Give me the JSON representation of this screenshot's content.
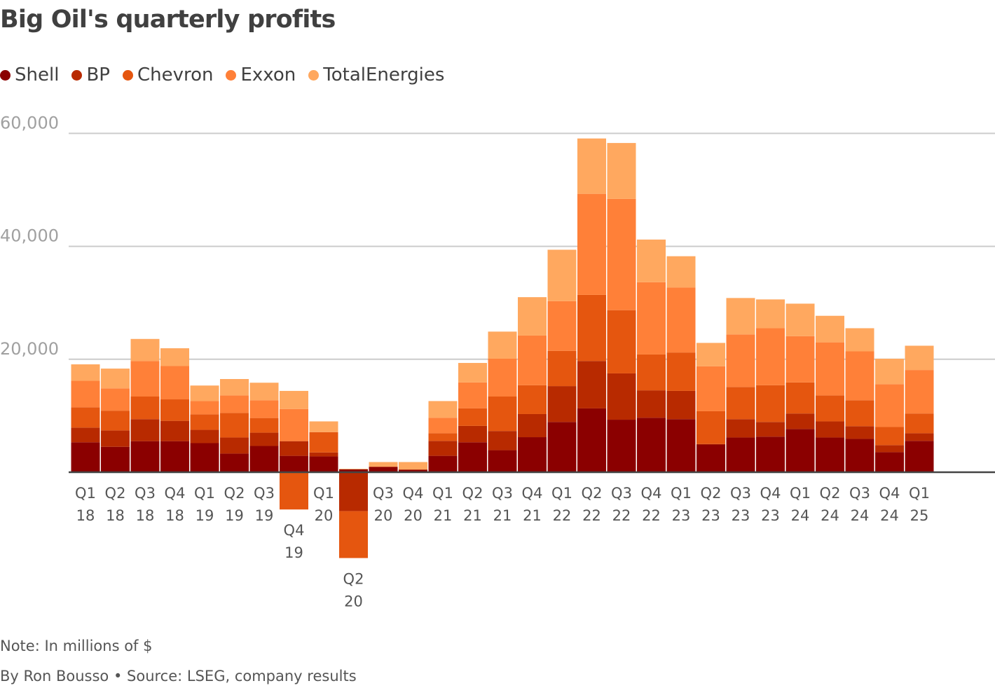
{
  "chart_data": {
    "type": "bar",
    "stacked": true,
    "title": "Big Oil's quarterly profits",
    "xlabel": "",
    "ylabel": "",
    "ylim": [
      -15000,
      60000
    ],
    "yticks": [
      20000,
      40000,
      60000
    ],
    "ytick_labels": [
      "20,000",
      "40,000",
      "60,000"
    ],
    "grid": true,
    "legend_position": "top-left",
    "categories": [
      "Q1 18",
      "Q2 18",
      "Q3 18",
      "Q4 18",
      "Q1 19",
      "Q2 19",
      "Q3 19",
      "Q4 19",
      "Q1 20",
      "Q2 20",
      "Q3 20",
      "Q4 20",
      "Q1 21",
      "Q2 21",
      "Q3 21",
      "Q4 21",
      "Q1 22",
      "Q2 22",
      "Q3 22",
      "Q4 22",
      "Q1 23",
      "Q2 23",
      "Q3 23",
      "Q4 23",
      "Q1 24",
      "Q2 24",
      "Q3 24",
      "Q4 24",
      "Q1 25"
    ],
    "series": [
      {
        "name": "Shell",
        "color": "#8B0000",
        "values": [
          5300,
          4500,
          5500,
          5500,
          5150,
          3300,
          4650,
          2900,
          2800,
          500,
          900,
          400,
          2900,
          5300,
          3900,
          6200,
          8900,
          11300,
          9300,
          9650,
          9400,
          4900,
          6150,
          6300,
          7650,
          6150,
          5900,
          3550,
          5550
        ]
      },
      {
        "name": "BP",
        "color": "#B82A00",
        "values": [
          2600,
          2900,
          3900,
          3600,
          2350,
          2850,
          2350,
          2600,
          700,
          -6900,
          100,
          100,
          2650,
          2900,
          3400,
          4100,
          6350,
          8400,
          8200,
          4850,
          5000,
          100,
          3250,
          2600,
          2750,
          2850,
          2250,
          1250,
          1350
        ]
      },
      {
        "name": "Chevron",
        "color": "#E5560F",
        "values": [
          3600,
          3500,
          4000,
          3800,
          2750,
          4350,
          2600,
          -6600,
          3600,
          -8300,
          0,
          0,
          1350,
          3100,
          6100,
          5100,
          6250,
          11700,
          11200,
          6350,
          6800,
          5800,
          5700,
          6500,
          5500,
          4600,
          4600,
          3200,
          3500
        ]
      },
      {
        "name": "Exxon",
        "color": "#FF8038",
        "values": [
          4700,
          3950,
          6300,
          5900,
          2350,
          3100,
          3150,
          5700,
          0,
          0,
          0,
          0,
          2750,
          4600,
          6700,
          8800,
          8800,
          17900,
          19700,
          12800,
          11500,
          7950,
          9300,
          10100,
          8200,
          9400,
          8650,
          7600,
          7700
        ]
      },
      {
        "name": "TotalEnergies",
        "color": "#FFA85F",
        "values": [
          2900,
          3500,
          3900,
          3150,
          2750,
          2900,
          3100,
          3200,
          1900,
          100,
          800,
          1300,
          2950,
          3450,
          4800,
          6800,
          9100,
          9800,
          9900,
          7550,
          5550,
          4150,
          6450,
          5100,
          5750,
          4700,
          4100,
          4500,
          4300
        ]
      }
    ],
    "note": "Note: In millions of $",
    "byline": "By Ron Bousso • Source: LSEG, company results"
  }
}
